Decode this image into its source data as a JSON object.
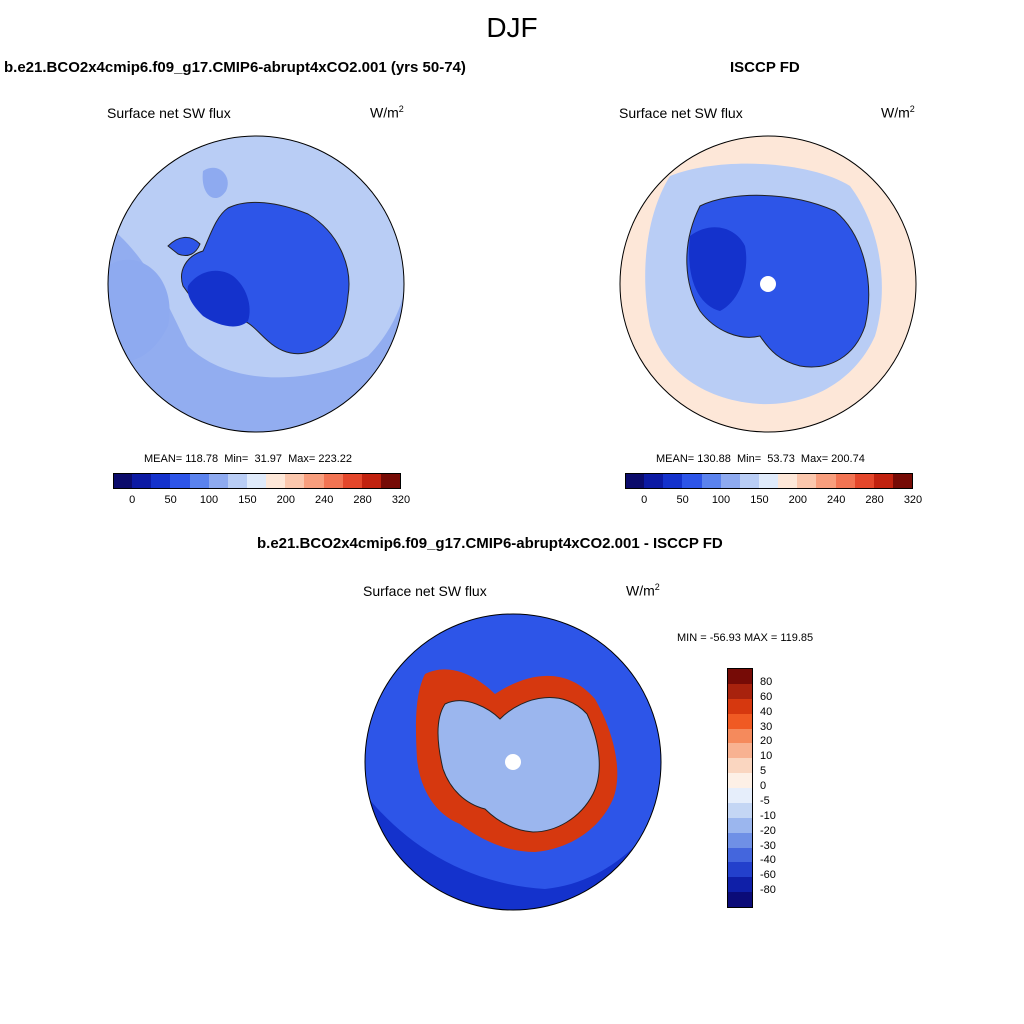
{
  "figure": {
    "main_title": "DJF"
  },
  "panels": {
    "left": {
      "title": "b.e21.BCO2x4cmip6.f09_g17.CMIP6-abrupt4xCO2.001 (yrs 50-74)",
      "variable": "Surface net SW flux",
      "unit_base": "W/m",
      "unit_sup": "2",
      "stats": "MEAN= 118.78  Min=  31.97  Max= 223.22"
    },
    "right": {
      "title": "ISCCP FD",
      "variable": "Surface net SW flux",
      "unit_base": "W/m",
      "unit_sup": "2",
      "stats": "MEAN= 130.88  Min=  53.73  Max= 200.74"
    },
    "diff": {
      "title": "b.e21.BCO2x4cmip6.f09_g17.CMIP6-abrupt4xCO2.001 - ISCCP FD",
      "variable": "Surface net SW flux",
      "unit_base": "W/m",
      "unit_sup": "2",
      "stats": "MIN = -56.93 MAX = 119.85"
    }
  },
  "colorbars": {
    "abs": {
      "colors": [
        "#0b0b6b",
        "#0c1aa3",
        "#1432cc",
        "#2d55e8",
        "#5b83ee",
        "#8eaaf0",
        "#b9cdf5",
        "#dfeafa",
        "#fde7d8",
        "#fbc7ad",
        "#f89e7d",
        "#f27453",
        "#e4472b",
        "#c1220f",
        "#760b06"
      ],
      "tick_labels": [
        "0",
        "50",
        "100",
        "150",
        "200",
        "240",
        "280",
        "320"
      ]
    },
    "diff": {
      "colors": [
        "#760b06",
        "#a8220d",
        "#d6380f",
        "#f05a23",
        "#f58a5c",
        "#f8b291",
        "#fad6c0",
        "#fdf0e6",
        "#e6eefb",
        "#c4d6f4",
        "#9bb6ee",
        "#6f90e6",
        "#4466dd",
        "#2340cc",
        "#0f1fa8",
        "#0b0b78"
      ],
      "tick_labels": [
        "80",
        "60",
        "40",
        "30",
        "20",
        "10",
        "5",
        "0",
        "-5",
        "-10",
        "-20",
        "-30",
        "-40",
        "-60",
        "-80"
      ]
    }
  },
  "map_colors": {
    "ocean_left": "#b9cdf5",
    "ocean_left_mid": "#8eaaf0",
    "land_left": "#2d55e8",
    "land_left_dark": "#1432cc",
    "ocean_right": "#fde7d8",
    "ring_right": "#b9cdf5",
    "land_right": "#2d55e8",
    "land_right_dark": "#1432cc",
    "diff_ocean": "#2d55e8",
    "diff_ocean_dark": "#1432cc",
    "diff_ring": "#d6380f",
    "diff_land": "#9bb6ee"
  }
}
